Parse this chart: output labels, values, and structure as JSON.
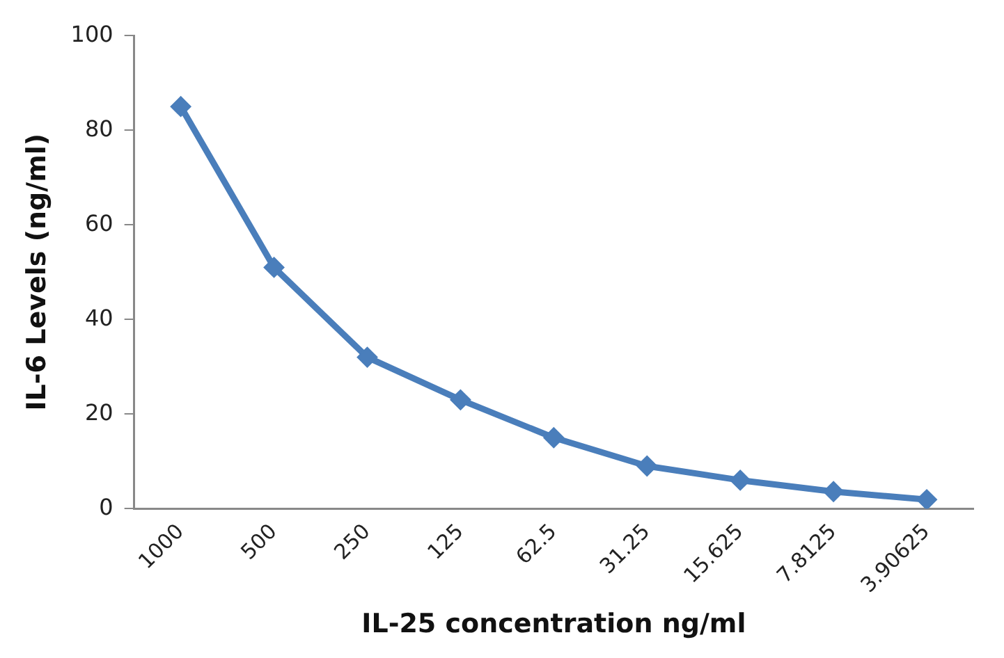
{
  "chart_data": {
    "type": "line",
    "xlabel": "IL-25 concentration ng/ml",
    "ylabel": "IL-6 Levels (ng/ml)",
    "categories": [
      "1000",
      "500",
      "250",
      "125",
      "62.5",
      "31.25",
      "15.625",
      "7.8125",
      "3.90625"
    ],
    "series": [
      {
        "color": "#4a7ebb",
        "values": [
          85,
          51,
          32,
          23,
          15,
          9,
          6,
          3.6,
          1.9
        ]
      }
    ],
    "ylim": [
      0,
      100
    ],
    "yticks": [
      0,
      20,
      40,
      60,
      80,
      100
    ],
    "grid": false,
    "legend": false,
    "marker": "diamond",
    "line_style": "solid"
  }
}
